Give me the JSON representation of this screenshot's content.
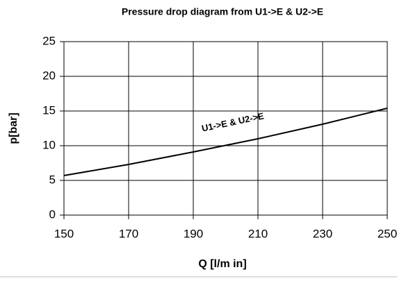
{
  "chart_data": {
    "type": "line",
    "title": "Pressure drop diagram from U1->E & U2->E",
    "x_label": "Q [l/m in]",
    "y_label": "p[bar]",
    "annotation": "U1->E & U2->E",
    "x": [
      150,
      170,
      190,
      210,
      230,
      250
    ],
    "series": [
      {
        "name": "U1->E & U2->E",
        "color": "#000000",
        "values": [
          5.7,
          7.3,
          9.1,
          11.0,
          13.1,
          15.4
        ]
      }
    ],
    "xlim": [
      150,
      250
    ],
    "xticks": [
      150,
      170,
      190,
      210,
      230,
      250
    ],
    "ylim": [
      0,
      25
    ],
    "yticks": [
      0,
      5,
      10,
      15,
      20,
      25
    ],
    "grid": true
  }
}
